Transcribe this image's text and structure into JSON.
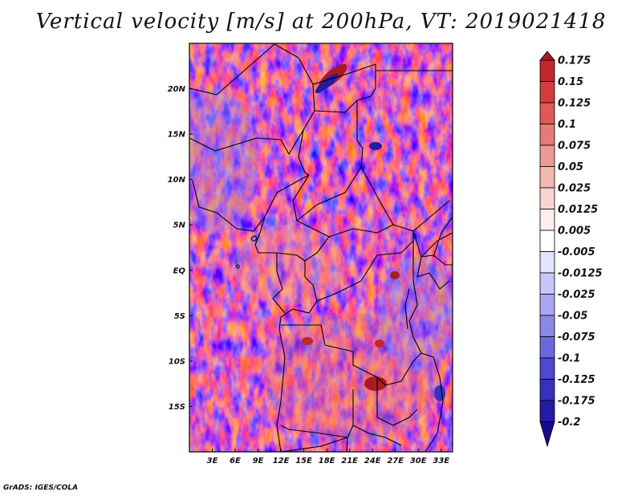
{
  "title": "Vertical velocity [m/s] at 200hPa, VT: 2019021418",
  "footer": "GrADS: IGES/COLA",
  "map": {
    "region": "Central Africa",
    "variable": "Vertical velocity",
    "units": "m/s",
    "level": "200hPa",
    "valid_time": "2019021418",
    "lon_range": [
      0,
      34.5
    ],
    "lat_range": [
      -20,
      25
    ],
    "lon_ticks": [
      "3E",
      "6E",
      "9E",
      "12E",
      "15E",
      "18E",
      "21E",
      "24E",
      "27E",
      "30E",
      "33E"
    ],
    "lat_ticks": [
      "20N",
      "15N",
      "10N",
      "5N",
      "EQ",
      "5S",
      "10S",
      "15S"
    ]
  },
  "colorbar": {
    "labels": [
      "0.175",
      "0.15",
      "0.125",
      "0.1",
      "0.075",
      "0.05",
      "0.025",
      "0.0125",
      "0.005",
      "-0.005",
      "-0.0125",
      "-0.025",
      "-0.05",
      "-0.075",
      "-0.1",
      "-0.125",
      "-0.175",
      "-0.2"
    ],
    "colors": [
      "#a51d22",
      "#c2272d",
      "#d23c3c",
      "#dd5a58",
      "#e57b76",
      "#ec9a94",
      "#f2b8b2",
      "#f7d5d1",
      "#fcefee",
      "#ffffff",
      "#e3e3fb",
      "#c7c6f6",
      "#a9a7ef",
      "#8b88e6",
      "#6d69dd",
      "#4e49d0",
      "#3731c0",
      "#231aa6",
      "#160b8c"
    ]
  },
  "colors": {
    "positive_accent": "#dd5a58",
    "negative_accent": "#6d69dd",
    "border": "#000000"
  }
}
